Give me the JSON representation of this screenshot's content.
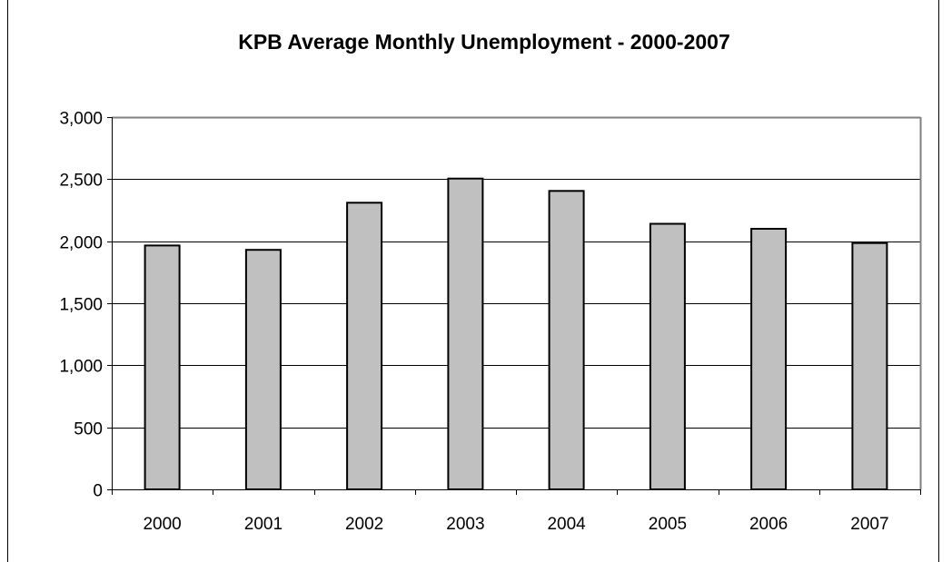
{
  "chart_data": {
    "type": "bar",
    "title": "KPB Average Monthly Unemployment - 2000-2007",
    "xlabel": "",
    "ylabel": "",
    "categories": [
      "2000",
      "2001",
      "2002",
      "2003",
      "2004",
      "2005",
      "2006",
      "2007"
    ],
    "values": [
      1965,
      1930,
      2310,
      2505,
      2405,
      2140,
      2100,
      1985
    ],
    "ylim": [
      0,
      3000
    ],
    "yticks": [
      0,
      500,
      1000,
      1500,
      2000,
      2500,
      3000
    ],
    "ytick_labels": [
      "0",
      "500",
      "1,000",
      "1,500",
      "2,000",
      "2,500",
      "3,000"
    ],
    "grid": true,
    "legend": "none",
    "colors": {
      "bar_fill": "#c0c0c0",
      "bar_stroke": "#000000",
      "gridline": "#000000",
      "plot_border": "#808080",
      "frame_border": "#000000",
      "text": "#000000"
    }
  }
}
